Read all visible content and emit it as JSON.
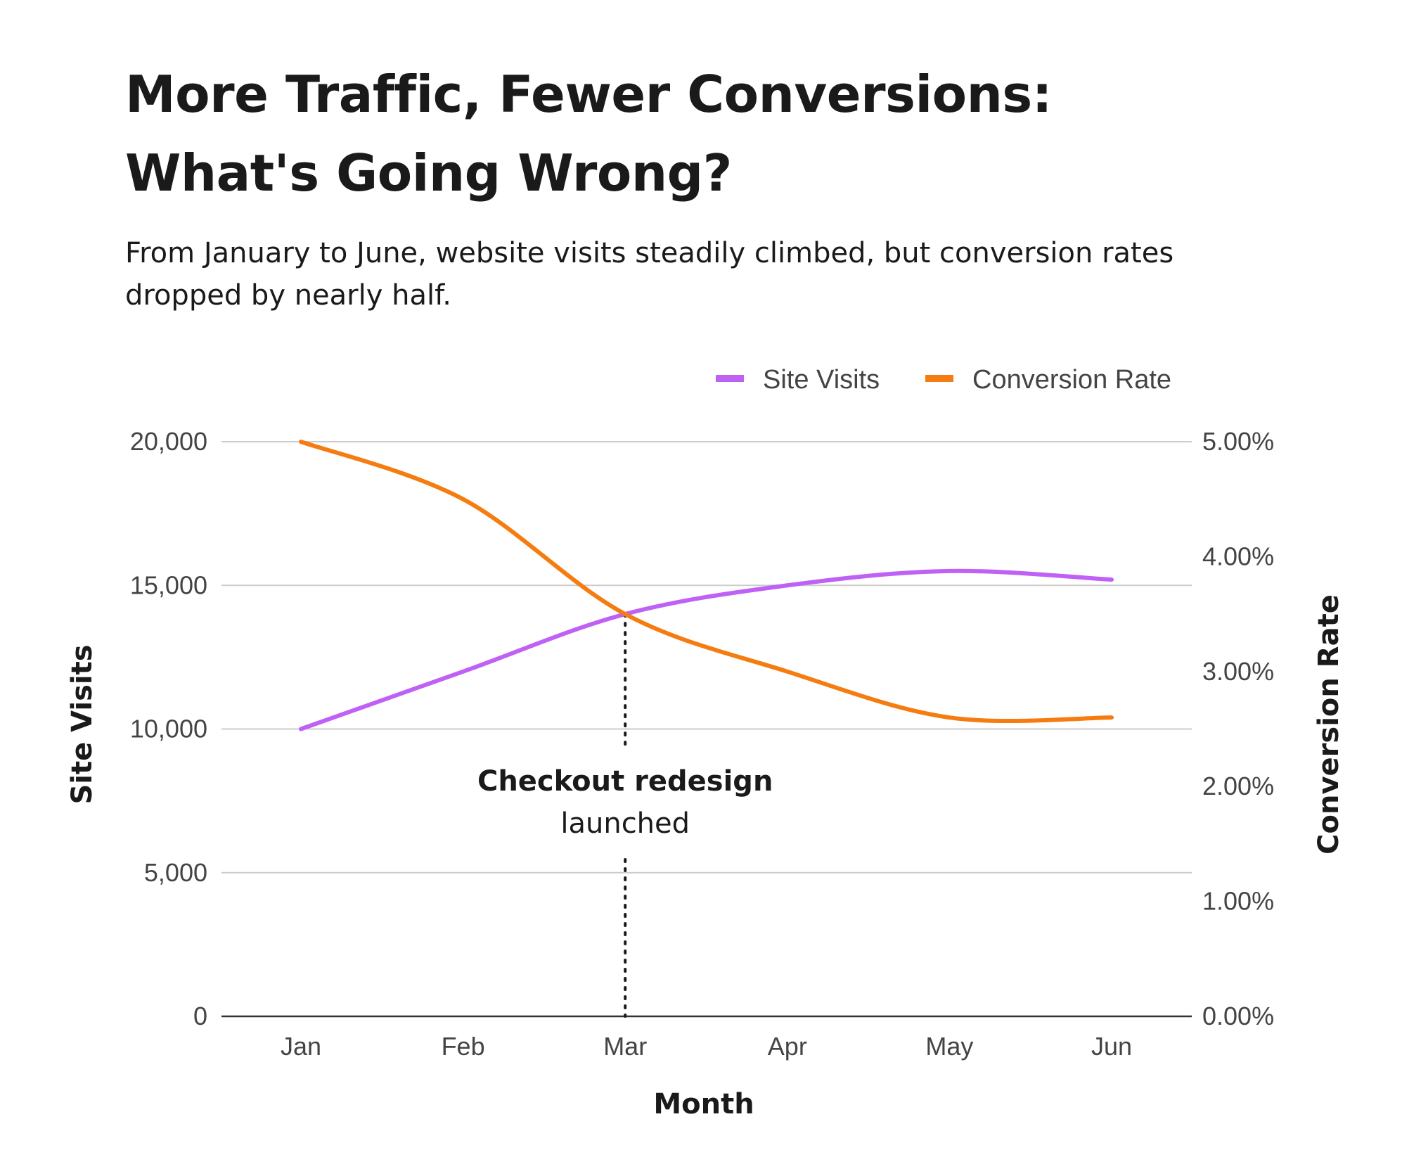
{
  "header": {
    "title_line1": "More Traffic, Fewer Conversions:",
    "title_line2": "What's Going Wrong?",
    "subtitle_line1": "From January to June, website visits steadily climbed, but conversion rates",
    "subtitle_line2": "dropped by nearly half."
  },
  "chart_data": {
    "type": "line",
    "title": "More Traffic, Fewer Conversions: What's Going Wrong?",
    "categories": [
      "Jan",
      "Feb",
      "Mar",
      "Apr",
      "May",
      "Jun"
    ],
    "xlabel": "Month",
    "ylabel_left": "Site Visits",
    "ylabel_right": "Conversion Rate",
    "ylim_left": [
      0,
      20000
    ],
    "ylim_right": [
      0,
      5
    ],
    "yticks_left": [
      "0",
      "5,000",
      "10,000",
      "15,000",
      "20,000"
    ],
    "yticks_left_values": [
      0,
      5000,
      10000,
      15000,
      20000
    ],
    "yticks_right": [
      "0.00%",
      "1.00%",
      "2.00%",
      "3.00%",
      "4.00%",
      "5.00%"
    ],
    "yticks_right_values": [
      0,
      1,
      2,
      3,
      4,
      5
    ],
    "series": [
      {
        "name": "Site Visits",
        "axis": "left",
        "color": "#c061f5",
        "values": [
          10000,
          12000,
          14000,
          15000,
          15500,
          15200
        ]
      },
      {
        "name": "Conversion Rate",
        "axis": "right",
        "color": "#f57c10",
        "values": [
          5.0,
          4.5,
          3.5,
          3.0,
          2.6,
          2.6
        ]
      }
    ],
    "legend": {
      "position": "top-right",
      "items": [
        "Site Visits",
        "Conversion Rate"
      ]
    },
    "annotation": {
      "category": "Mar",
      "label_bold": "Checkout redesign",
      "label_normal": "launched"
    },
    "grid": true
  }
}
